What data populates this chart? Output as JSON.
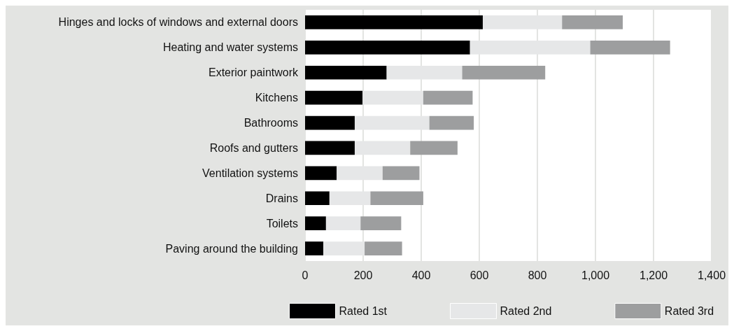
{
  "chart_data": {
    "type": "bar",
    "orientation": "horizontal",
    "stacked": true,
    "categories": [
      "Hinges and locks of windows and external doors",
      "Heating and water systems",
      "Exterior paintwork",
      "Kitchens",
      "Bathrooms",
      "Roofs and gutters",
      "Ventilation systems",
      "Drains",
      "Toilets",
      "Paving around the building"
    ],
    "series": [
      {
        "name": "Rated 1st",
        "color": "#000000",
        "values": [
          612,
          568,
          281,
          198,
          171,
          171,
          109,
          84,
          72,
          63
        ]
      },
      {
        "name": "Rated 2nd",
        "color": "#e6e7e8",
        "values": [
          273,
          414,
          260,
          209,
          257,
          191,
          158,
          141,
          119,
          142
        ]
      },
      {
        "name": "Rated 3rd",
        "color": "#9d9e9f",
        "values": [
          209,
          275,
          286,
          170,
          153,
          163,
          127,
          182,
          140,
          129
        ]
      }
    ],
    "xlim": [
      0,
      1400
    ],
    "xticks": [
      0,
      {
        "value": 200,
        "label": "200"
      },
      {
        "value": 400,
        "label": "400"
      },
      {
        "value": 600,
        "label": "600"
      },
      {
        "value": 800,
        "label": "800"
      },
      {
        "value": 1000,
        "label": "1,000"
      },
      {
        "value": 1200,
        "label": "1,200"
      },
      {
        "value": 1400,
        "label": "1,400"
      }
    ],
    "grid": "x",
    "legend": "bottom"
  }
}
